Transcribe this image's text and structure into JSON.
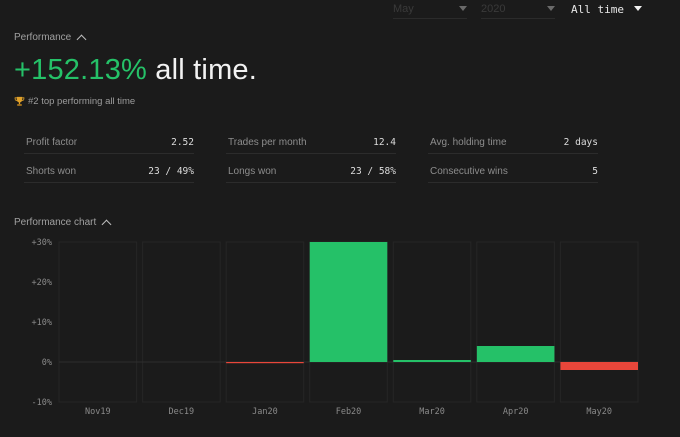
{
  "filters": [
    {
      "value": "May",
      "active": false
    },
    {
      "value": "2020",
      "active": false
    },
    {
      "value": "All time",
      "active": true
    }
  ],
  "performance": {
    "section_label": "Performance",
    "return_value": "+152.13%",
    "return_suffix": "all time.",
    "rank_text": "#2 top performing all time",
    "rank_icon": "trophy-icon"
  },
  "stats": [
    {
      "label": "Profit factor",
      "value": "2.52"
    },
    {
      "label": "Trades per month",
      "value": "12.4"
    },
    {
      "label": "Avg. holding time",
      "value": "2 days"
    },
    {
      "label": "Shorts won",
      "value": "23 / 49%"
    },
    {
      "label": "Longs won",
      "value": "23 / 58%"
    },
    {
      "label": "Consecutive wins",
      "value": "5"
    }
  ],
  "chart_section_label": "Performance chart",
  "colors": {
    "positive": "#25c168",
    "negative": "#e8463a",
    "background": "#1b1b1b"
  },
  "chart_data": {
    "type": "bar",
    "categories": [
      "Nov19",
      "Dec19",
      "Jan20",
      "Feb20",
      "Mar20",
      "Apr20",
      "May20"
    ],
    "values": [
      0,
      0,
      -0.2,
      30,
      0.5,
      4,
      -2
    ],
    "ylim": [
      -10,
      30
    ],
    "yticks": [
      "+30%",
      "+20%",
      "+10%",
      "0%",
      "-10%"
    ],
    "ytick_values": [
      30,
      20,
      10,
      0,
      -10
    ],
    "grid": true
  }
}
